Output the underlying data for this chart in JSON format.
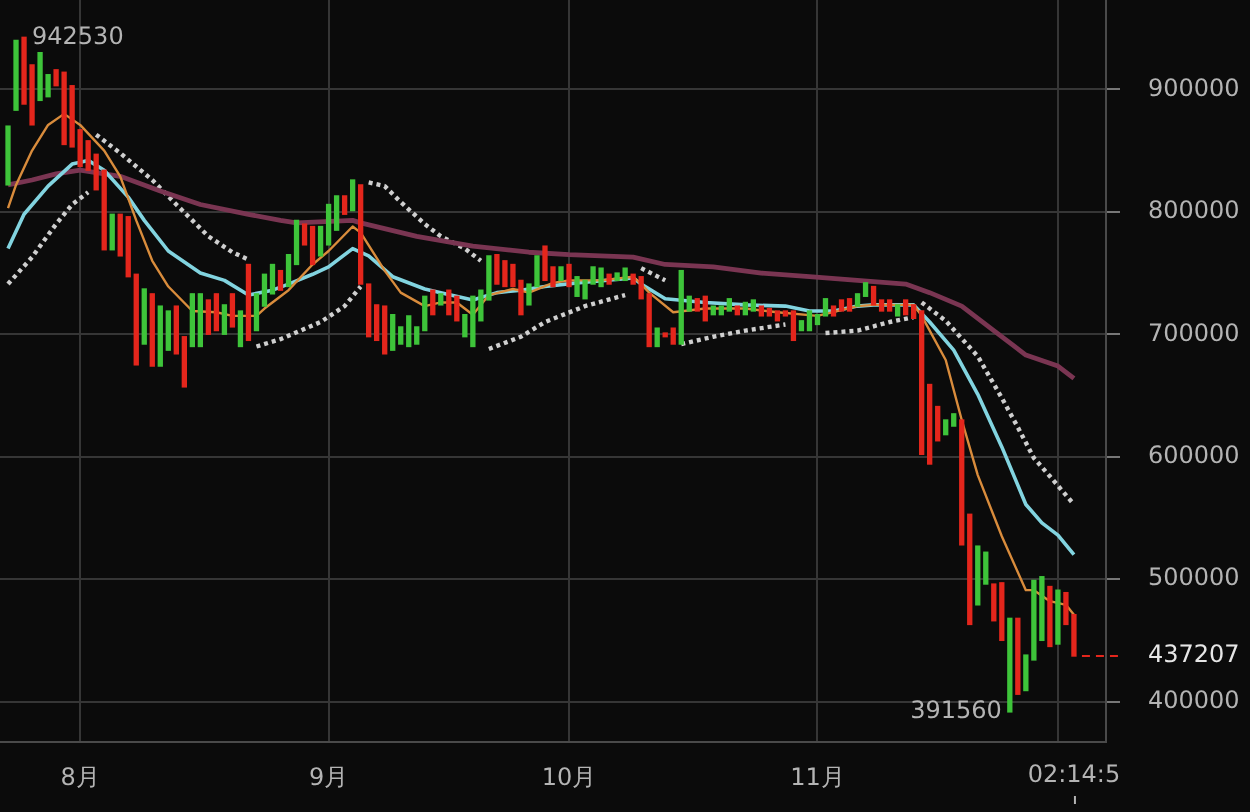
{
  "chart_data": {
    "type": "candlestick",
    "x": [
      "--07-23",
      "--07-24",
      "--07-25",
      "--07-26",
      "--07-27",
      "--07-28",
      "--07-29",
      "--07-30",
      "--07-31",
      "--08-01",
      "--08-02",
      "--08-03",
      "--08-04",
      "--08-05",
      "--08-06",
      "--08-07",
      "--08-08",
      "--08-09",
      "--08-10",
      "--08-11",
      "--08-12",
      "--08-13",
      "--08-14",
      "--08-15",
      "--08-16",
      "--08-17",
      "--08-18",
      "--08-19",
      "--08-20",
      "--08-21",
      "--08-22",
      "--08-23",
      "--08-24",
      "--08-25",
      "--08-26",
      "--08-27",
      "--08-28",
      "--08-29",
      "--08-30",
      "--08-31",
      "--09-01",
      "--09-02",
      "--09-03",
      "--09-04",
      "--09-05",
      "--09-06",
      "--09-07",
      "--09-08",
      "--09-09",
      "--09-10",
      "--09-11",
      "--09-12",
      "--09-13",
      "--09-14",
      "--09-15",
      "--09-16",
      "--09-17",
      "--09-18",
      "--09-19",
      "--09-20",
      "--09-21",
      "--09-22",
      "--09-23",
      "--09-24",
      "--09-25",
      "--09-26",
      "--09-27",
      "--09-28",
      "--09-29",
      "--09-30",
      "--10-01",
      "--10-02",
      "--10-03",
      "--10-04",
      "--10-05",
      "--10-06",
      "--10-07",
      "--10-08",
      "--10-09",
      "--10-10",
      "--10-11",
      "--10-12",
      "--10-13",
      "--10-14",
      "--10-15",
      "--10-16",
      "--10-17",
      "--10-18",
      "--10-19",
      "--10-20",
      "--10-21",
      "--10-22",
      "--10-23",
      "--10-24",
      "--10-25",
      "--10-26",
      "--10-27",
      "--10-28",
      "--10-29",
      "--10-30",
      "--10-31",
      "--11-01",
      "--11-02",
      "--11-03",
      "--11-04",
      "--11-05",
      "--11-06",
      "--11-07",
      "--11-08",
      "--11-09",
      "--11-10",
      "--11-11",
      "--11-12",
      "--11-13",
      "--11-14",
      "--11-15",
      "--11-16",
      "--11-17",
      "--11-18",
      "--11-19",
      "--11-20",
      "--11-21",
      "--11-22",
      "--11-23",
      "--11-24",
      "--11-25",
      "--11-26",
      "--11-27",
      "--11-28",
      "--11-29",
      "--11-30",
      "--12-01",
      "--12-02",
      "--12-03"
    ],
    "ohlc": [
      [
        822000,
        870000,
        822000,
        870000
      ],
      [
        883000,
        940000,
        883000,
        940000
      ],
      [
        942530,
        942530,
        888000,
        888000
      ],
      [
        920000,
        920000,
        871000,
        871000
      ],
      [
        891000,
        930000,
        891000,
        930000
      ],
      [
        894000,
        912000,
        894000,
        912000
      ],
      [
        916000,
        916000,
        903000,
        903000
      ],
      [
        914000,
        914000,
        855000,
        855000
      ],
      [
        903000,
        903000,
        853000,
        853000
      ],
      [
        867000,
        867000,
        837000,
        837000
      ],
      [
        858000,
        858000,
        834000,
        834000
      ],
      [
        847000,
        847000,
        818000,
        818000
      ],
      [
        834000,
        834000,
        769000,
        769000
      ],
      [
        769000,
        798000,
        769000,
        798000
      ],
      [
        798000,
        798000,
        764000,
        764000
      ],
      [
        796000,
        796000,
        747000,
        747000
      ],
      [
        749000,
        749000,
        675000,
        675000
      ],
      [
        692000,
        737000,
        692000,
        737000
      ],
      [
        733000,
        733000,
        674000,
        674000
      ],
      [
        674000,
        723000,
        674000,
        723000
      ],
      [
        687000,
        719000,
        687000,
        719000
      ],
      [
        723000,
        723000,
        684000,
        684000
      ],
      [
        698000,
        698000,
        657000,
        657000
      ],
      [
        690000,
        733000,
        690000,
        733000
      ],
      [
        690000,
        733000,
        690000,
        733000
      ],
      [
        728000,
        728000,
        700000,
        700000
      ],
      [
        733000,
        733000,
        703000,
        703000
      ],
      [
        700000,
        724000,
        700000,
        724000
      ],
      [
        733000,
        733000,
        706000,
        706000
      ],
      [
        690000,
        719000,
        690000,
        719000
      ],
      [
        757000,
        757000,
        695000,
        695000
      ],
      [
        703000,
        733000,
        703000,
        733000
      ],
      [
        723000,
        749000,
        723000,
        749000
      ],
      [
        733000,
        757000,
        733000,
        757000
      ],
      [
        752000,
        752000,
        736000,
        736000
      ],
      [
        739000,
        765000,
        739000,
        765000
      ],
      [
        757000,
        793000,
        757000,
        793000
      ],
      [
        790000,
        790000,
        773000,
        773000
      ],
      [
        788000,
        788000,
        757000,
        757000
      ],
      [
        764000,
        788000,
        764000,
        788000
      ],
      [
        773000,
        806000,
        773000,
        806000
      ],
      [
        785000,
        813000,
        785000,
        813000
      ],
      [
        813000,
        813000,
        798000,
        798000
      ],
      [
        801000,
        826000,
        801000,
        826000
      ],
      [
        822000,
        822000,
        741000,
        741000
      ],
      [
        741000,
        741000,
        698000,
        698000
      ],
      [
        724000,
        724000,
        695000,
        695000
      ],
      [
        723000,
        723000,
        684000,
        684000
      ],
      [
        687000,
        716000,
        687000,
        716000
      ],
      [
        692000,
        706000,
        692000,
        706000
      ],
      [
        690000,
        715000,
        690000,
        715000
      ],
      [
        692000,
        706000,
        692000,
        706000
      ],
      [
        703000,
        731000,
        703000,
        731000
      ],
      [
        736000,
        736000,
        716000,
        716000
      ],
      [
        724000,
        733000,
        724000,
        733000
      ],
      [
        736000,
        736000,
        716000,
        716000
      ],
      [
        731000,
        731000,
        711000,
        711000
      ],
      [
        698000,
        716000,
        698000,
        716000
      ],
      [
        690000,
        731000,
        690000,
        731000
      ],
      [
        711000,
        736000,
        711000,
        736000
      ],
      [
        728000,
        764000,
        728000,
        764000
      ],
      [
        765000,
        765000,
        741000,
        741000
      ],
      [
        760000,
        760000,
        739000,
        739000
      ],
      [
        757000,
        757000,
        739000,
        739000
      ],
      [
        744000,
        744000,
        716000,
        716000
      ],
      [
        724000,
        741000,
        724000,
        741000
      ],
      [
        739000,
        764000,
        739000,
        764000
      ],
      [
        772000,
        772000,
        744000,
        744000
      ],
      [
        755000,
        755000,
        739000,
        739000
      ],
      [
        744000,
        755000,
        744000,
        755000
      ],
      [
        757000,
        757000,
        739000,
        739000
      ],
      [
        731000,
        747000,
        731000,
        747000
      ],
      [
        729000,
        744000,
        729000,
        744000
      ],
      [
        741000,
        755000,
        741000,
        755000
      ],
      [
        739000,
        754000,
        739000,
        754000
      ],
      [
        749000,
        749000,
        741000,
        741000
      ],
      [
        744000,
        750000,
        744000,
        750000
      ],
      [
        744000,
        754000,
        744000,
        754000
      ],
      [
        749000,
        749000,
        741000,
        741000
      ],
      [
        747000,
        747000,
        729000,
        729000
      ],
      [
        733000,
        733000,
        690000,
        690000
      ],
      [
        690000,
        705000,
        690000,
        705000
      ],
      [
        701000,
        701000,
        698000,
        698000
      ],
      [
        705000,
        705000,
        692000,
        692000
      ],
      [
        692000,
        752000,
        692000,
        752000
      ],
      [
        719000,
        731000,
        719000,
        731000
      ],
      [
        729000,
        729000,
        719000,
        719000
      ],
      [
        731000,
        731000,
        711000,
        711000
      ],
      [
        716000,
        723000,
        716000,
        723000
      ],
      [
        716000,
        723000,
        716000,
        723000
      ],
      [
        719000,
        729000,
        719000,
        729000
      ],
      [
        723000,
        723000,
        716000,
        716000
      ],
      [
        716000,
        726000,
        716000,
        726000
      ],
      [
        719000,
        728000,
        719000,
        728000
      ],
      [
        723000,
        723000,
        715000,
        715000
      ],
      [
        721000,
        721000,
        715000,
        715000
      ],
      [
        719000,
        719000,
        711000,
        711000
      ],
      [
        719000,
        719000,
        715000,
        715000
      ],
      [
        719000,
        719000,
        695000,
        695000
      ],
      [
        703000,
        711000,
        703000,
        711000
      ],
      [
        703000,
        719000,
        703000,
        719000
      ],
      [
        708000,
        716000,
        708000,
        716000
      ],
      [
        715000,
        729000,
        715000,
        729000
      ],
      [
        723000,
        723000,
        715000,
        715000
      ],
      [
        728000,
        728000,
        719000,
        719000
      ],
      [
        729000,
        729000,
        719000,
        719000
      ],
      [
        723000,
        733000,
        723000,
        733000
      ],
      [
        731000,
        742000,
        731000,
        742000
      ],
      [
        739000,
        739000,
        724000,
        724000
      ],
      [
        728000,
        728000,
        719000,
        719000
      ],
      [
        728000,
        728000,
        719000,
        719000
      ],
      [
        715000,
        724000,
        715000,
        724000
      ],
      [
        728000,
        728000,
        716000,
        716000
      ],
      [
        724000,
        724000,
        713000,
        713000
      ],
      [
        719000,
        719000,
        602000,
        602000
      ],
      [
        659000,
        659000,
        594000,
        594000
      ],
      [
        641000,
        641000,
        613000,
        613000
      ],
      [
        618000,
        630000,
        618000,
        630000
      ],
      [
        625000,
        635000,
        625000,
        635000
      ],
      [
        630000,
        630000,
        528000,
        528000
      ],
      [
        553000,
        553000,
        463000,
        463000
      ],
      [
        479000,
        527000,
        479000,
        527000
      ],
      [
        496000,
        522000,
        496000,
        522000
      ],
      [
        496000,
        496000,
        466000,
        466000
      ],
      [
        497000,
        497000,
        450000,
        450000
      ],
      [
        391560,
        468000,
        391560,
        468000
      ],
      [
        468000,
        468000,
        406000,
        406000
      ],
      [
        409000,
        438000,
        409000,
        438000
      ],
      [
        434000,
        499000,
        434000,
        499000
      ],
      [
        450000,
        502000,
        450000,
        502000
      ],
      [
        494000,
        494000,
        445000,
        445000
      ],
      [
        447000,
        491000,
        447000,
        491000
      ],
      [
        489000,
        489000,
        463000,
        463000
      ],
      [
        471000,
        471000,
        437207,
        437207
      ]
    ],
    "series": [
      {
        "type": "line",
        "color": "#d98c3c",
        "x": [
          "--07-23",
          "--07-24",
          "--07-26",
          "--07-28",
          "--07-30",
          "--08-01",
          "--08-04",
          "--08-06",
          "--08-08",
          "--08-10",
          "--08-12",
          "--08-15",
          "--08-18",
          "--08-20",
          "--08-23",
          "--08-24",
          "--08-27",
          "--08-30",
          "--09-01",
          "--09-04",
          "--09-05",
          "--09-08",
          "--09-10",
          "--09-13",
          "--09-15",
          "--09-17",
          "--09-19",
          "--09-21",
          "--09-24",
          "--09-26",
          "--09-29",
          "--10-01",
          "--10-05",
          "--10-09",
          "--10-10",
          "--10-11",
          "--10-14",
          "--10-18",
          "--10-23",
          "--10-27",
          "--11-01",
          "--11-06",
          "--11-08",
          "--11-13",
          "--11-14",
          "--11-17",
          "--11-19",
          "--11-21",
          "--11-24",
          "--11-27",
          "--11-28",
          "--11-30",
          "--12-02",
          "--12-03"
        ],
        "values": [
          803000,
          822000,
          850000,
          871000,
          880000,
          871000,
          850000,
          829000,
          793000,
          760000,
          739000,
          719000,
          718000,
          715000,
          715000,
          721000,
          736000,
          757000,
          768000,
          788000,
          783000,
          752000,
          734000,
          723000,
          726000,
          726000,
          716000,
          732000,
          737000,
          734000,
          742000,
          744000,
          744000,
          747000,
          741000,
          734000,
          718000,
          721000,
          721000,
          718000,
          715000,
          723000,
          724000,
          724000,
          715000,
          679000,
          630000,
          585000,
          535000,
          491000,
          491000,
          482000,
          479000,
          471000
        ]
      },
      {
        "type": "line",
        "color": "#82d4e0",
        "x": [
          "--07-23",
          "--07-25",
          "--07-28",
          "--07-31",
          "--08-02",
          "--08-04",
          "--08-07",
          "--08-09",
          "--08-12",
          "--08-16",
          "--08-19",
          "--08-22",
          "--08-25",
          "--08-27",
          "--08-30",
          "--09-01",
          "--09-04",
          "--09-06",
          "--09-09",
          "--09-13",
          "--09-15",
          "--09-19",
          "--09-22",
          "--09-25",
          "--09-28",
          "--10-02",
          "--10-09",
          "--10-10",
          "--10-13",
          "--10-18",
          "--10-23",
          "--10-28",
          "--10-31",
          "--11-03",
          "--11-06",
          "--11-08",
          "--11-13",
          "--11-15",
          "--11-18",
          "--11-21",
          "--11-24",
          "--11-27",
          "--11-29",
          "--12-01",
          "--12-03"
        ],
        "values": [
          770000,
          798000,
          821000,
          839000,
          842000,
          834000,
          812000,
          793000,
          768000,
          750000,
          744000,
          732000,
          736000,
          741000,
          749000,
          755000,
          770000,
          764000,
          747000,
          737000,
          734000,
          728000,
          734000,
          736000,
          739000,
          742000,
          746000,
          741000,
          729000,
          726000,
          724000,
          723000,
          719000,
          719000,
          723000,
          724000,
          724000,
          710000,
          687000,
          651000,
          608000,
          561000,
          546000,
          536000,
          520000
        ]
      },
      {
        "type": "line",
        "color": "#7a3552",
        "x": [
          "--07-23",
          "--07-26",
          "--07-29",
          "--08-01",
          "--08-03",
          "--08-06",
          "--08-11",
          "--08-16",
          "--08-22",
          "--08-26",
          "--08-28",
          "--09-04",
          "--09-05",
          "--09-12",
          "--09-19",
          "--09-26",
          "--10-01",
          "--10-09",
          "--10-13",
          "--10-19",
          "--10-25",
          "--10-31",
          "--11-06",
          "--11-12",
          "--11-15",
          "--11-19",
          "--11-23",
          "--11-27",
          "--12-01",
          "--12-03"
        ],
        "values": [
          822000,
          826000,
          831000,
          834000,
          832000,
          829000,
          817000,
          806000,
          798000,
          793000,
          791000,
          793000,
          791000,
          780000,
          772000,
          767000,
          765000,
          763000,
          757000,
          755000,
          750000,
          747000,
          744000,
          741000,
          734000,
          723000,
          703000,
          683000,
          674000,
          664000
        ]
      },
      {
        "type": "line",
        "color": "#cfcfcf",
        "line_style": "dotted",
        "x": [
          "--07-23",
          "--07-26",
          "--07-29",
          "--07-31",
          "--08-02"
        ],
        "values": [
          741000,
          763000,
          790000,
          806000,
          816000
        ]
      },
      {
        "type": "line",
        "color": "#cfcfcf",
        "line_style": "dotted",
        "x": [
          "--08-03",
          "--08-06",
          "--08-10",
          "--08-13",
          "--08-17",
          "--08-20",
          "--08-22"
        ],
        "values": [
          863000,
          848000,
          826000,
          806000,
          780000,
          767000,
          761000
        ]
      },
      {
        "type": "line",
        "color": "#cfcfcf",
        "line_style": "dotted",
        "x": [
          "--08-23",
          "--08-26",
          "--08-31",
          "--09-03",
          "--09-05"
        ],
        "values": [
          690000,
          696000,
          710000,
          723000,
          739000
        ]
      },
      {
        "type": "line",
        "color": "#cfcfcf",
        "line_style": "dotted",
        "x": [
          "--09-06",
          "--09-08",
          "--09-10",
          "--09-13",
          "--09-15",
          "--09-18",
          "--09-20"
        ],
        "values": [
          824000,
          821000,
          808000,
          790000,
          780000,
          770000,
          760000
        ]
      },
      {
        "type": "line",
        "color": "#cfcfcf",
        "line_style": "dotted",
        "x": [
          "--09-21",
          "--09-25",
          "--09-28",
          "--10-03",
          "--10-08"
        ],
        "values": [
          688000,
          698000,
          710000,
          723000,
          732000
        ]
      },
      {
        "type": "line",
        "color": "#cfcfcf",
        "line_style": "dotted",
        "x": [
          "--10-10",
          "--10-13"
        ],
        "values": [
          754000,
          744000
        ]
      },
      {
        "type": "line",
        "color": "#cfcfcf",
        "line_style": "dotted",
        "x": [
          "--10-15",
          "--10-19",
          "--10-23",
          "--10-28"
        ],
        "values": [
          692000,
          698000,
          703000,
          708000
        ]
      },
      {
        "type": "line",
        "color": "#cfcfcf",
        "line_style": "dotted",
        "x": [
          "--11-02",
          "--11-06",
          "--11-10",
          "--11-13"
        ],
        "values": [
          701000,
          703000,
          710000,
          714000
        ]
      },
      {
        "type": "line",
        "color": "#cfcfcf",
        "line_style": "dotted",
        "x": [
          "--11-14",
          "--11-17",
          "--11-21",
          "--11-24",
          "--11-26",
          "--11-28",
          "--11-30",
          "--12-03"
        ],
        "values": [
          726000,
          711000,
          682000,
          648000,
          624000,
          599000,
          584000,
          561000
        ]
      }
    ],
    "xlim": [
      "--07-22",
      "--12-07"
    ],
    "xticks": [
      {
        "value": "--08-01",
        "label": "8月"
      },
      {
        "value": "--09-01",
        "label": "9月"
      },
      {
        "value": "--10-01",
        "label": "10月"
      },
      {
        "value": "--11-01",
        "label": "11月"
      },
      {
        "value": "--12-01",
        "label": null
      }
    ],
    "ylim": [
      367000,
      973000
    ],
    "yticks": [
      400000,
      500000,
      600000,
      700000,
      800000,
      900000
    ],
    "grid": true,
    "ref_lines": [
      {
        "axis": "y",
        "value": 437207,
        "label": "437207",
        "color": "#e4261c",
        "line_style": "dashed"
      }
    ],
    "annotations": [
      {
        "text": "942530",
        "x": "--07-25",
        "y": 942530
      },
      {
        "text": "391560",
        "x": "--11-25",
        "y": 391560
      },
      "02:14:5"
    ]
  }
}
